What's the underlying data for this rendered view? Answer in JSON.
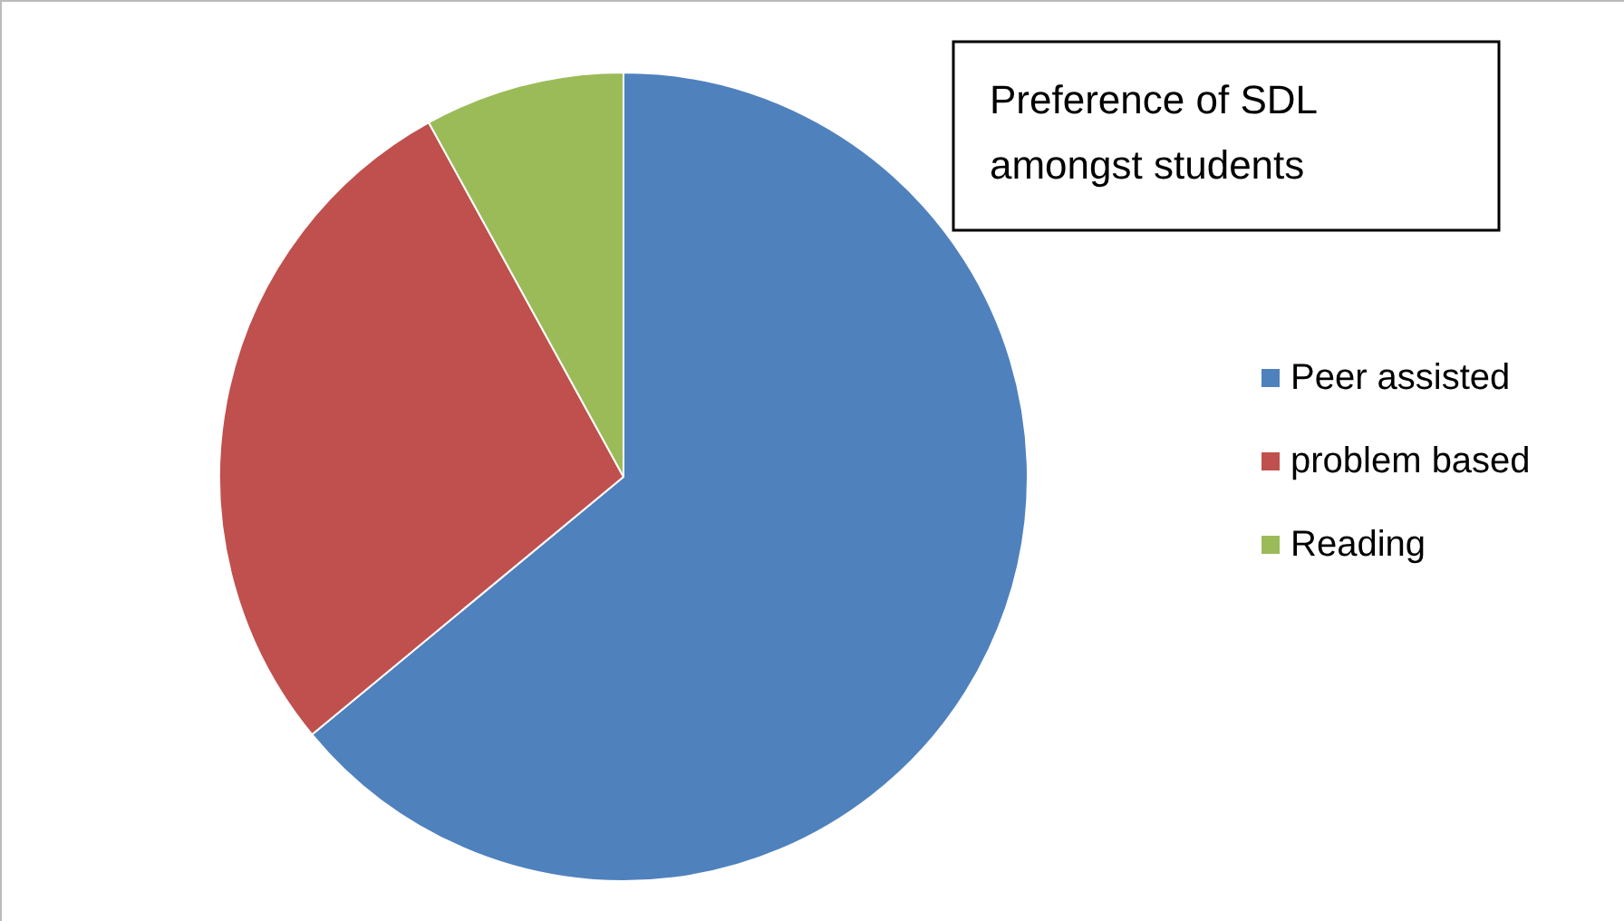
{
  "chart_data": {
    "type": "pie",
    "title": "Preference of SDL\namongst students",
    "categories": [
      "Peer assisted",
      "problem based",
      "Reading"
    ],
    "values": [
      64,
      28,
      8
    ],
    "colors": [
      "#4f81bd",
      "#c0504d",
      "#9bbb59"
    ],
    "legend": "right"
  }
}
